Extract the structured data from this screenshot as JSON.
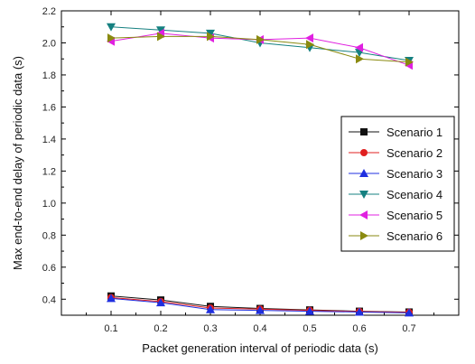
{
  "chart_data": {
    "type": "line",
    "title": "",
    "xlabel": "Packet generation interval of periodic data (s)",
    "ylabel": "Max end-to-end delay of periodic data (s)",
    "xlim": [
      0.0,
      0.8
    ],
    "ylim": [
      0.3,
      2.2
    ],
    "x_ticks": [
      "0.1",
      "0.2",
      "0.3",
      "0.4",
      "0.5",
      "0.6",
      "0.7"
    ],
    "y_ticks": [
      "0.4",
      "0.6",
      "0.8",
      "1.0",
      "1.2",
      "1.4",
      "1.6",
      "1.8",
      "2.0",
      "2.2"
    ],
    "grid": false,
    "legend_position": "right",
    "x": [
      0.1,
      0.2,
      0.3,
      0.4,
      0.5,
      0.6,
      0.7
    ],
    "series": [
      {
        "name": "Scenario 1",
        "color": "#111111",
        "marker": "square",
        "values": [
          0.42,
          0.395,
          0.355,
          0.342,
          0.333,
          0.325,
          0.32
        ]
      },
      {
        "name": "Scenario 2",
        "color": "#e02020",
        "marker": "circle",
        "values": [
          0.41,
          0.385,
          0.345,
          0.338,
          0.33,
          0.323,
          0.318
        ]
      },
      {
        "name": "Scenario 3",
        "color": "#1f2fe0",
        "marker": "triangle-up",
        "values": [
          0.405,
          0.378,
          0.335,
          0.33,
          0.325,
          0.32,
          0.315
        ]
      },
      {
        "name": "Scenario 4",
        "color": "#158080",
        "marker": "triangle-down",
        "values": [
          2.1,
          2.08,
          2.06,
          2.0,
          1.97,
          1.94,
          1.89
        ]
      },
      {
        "name": "Scenario 5",
        "color": "#e020e0",
        "marker": "triangle-left",
        "values": [
          2.01,
          2.06,
          2.03,
          2.02,
          2.03,
          1.97,
          1.86
        ]
      },
      {
        "name": "Scenario 6",
        "color": "#8a8a10",
        "marker": "triangle-right",
        "values": [
          2.03,
          2.04,
          2.04,
          2.02,
          1.99,
          1.9,
          1.88
        ]
      }
    ]
  }
}
